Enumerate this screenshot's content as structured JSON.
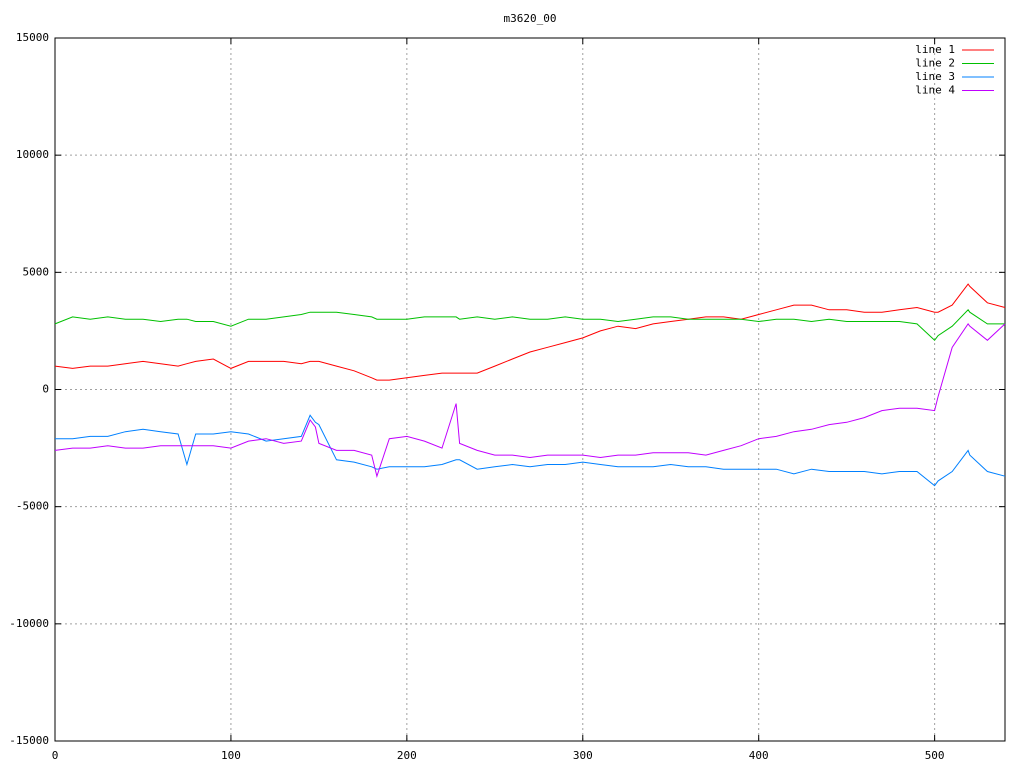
{
  "chart_data": {
    "type": "line",
    "title": "m3620_00",
    "x": [
      0,
      10,
      20,
      30,
      40,
      50,
      60,
      70,
      75,
      80,
      90,
      100,
      110,
      120,
      130,
      140,
      145,
      148,
      150,
      160,
      170,
      180,
      183,
      190,
      200,
      210,
      220,
      228,
      230,
      240,
      250,
      260,
      270,
      280,
      290,
      300,
      310,
      320,
      330,
      340,
      350,
      360,
      370,
      380,
      390,
      400,
      410,
      420,
      430,
      440,
      450,
      460,
      470,
      480,
      490,
      500,
      502,
      510,
      519,
      520,
      530,
      540
    ],
    "series": [
      {
        "name": "line 1",
        "color": "#ff0000",
        "values": [
          1000,
          900,
          1000,
          1000,
          1100,
          1200,
          1100,
          1000,
          1100,
          1200,
          1300,
          900,
          1200,
          1200,
          1200,
          1100,
          1200,
          1200,
          1200,
          1000,
          800,
          500,
          400,
          400,
          500,
          600,
          700,
          700,
          700,
          700,
          1000,
          1300,
          1600,
          1800,
          2000,
          2200,
          2500,
          2700,
          2600,
          2800,
          2900,
          3000,
          3100,
          3100,
          3000,
          3200,
          3400,
          3600,
          3600,
          3400,
          3400,
          3300,
          3300,
          3400,
          3500,
          3300,
          3300,
          3600,
          4500,
          4400,
          3700,
          3500
        ]
      },
      {
        "name": "line 2",
        "color": "#00c000",
        "values": [
          2800,
          3100,
          3000,
          3100,
          3000,
          3000,
          2900,
          3000,
          3000,
          2900,
          2900,
          2700,
          3000,
          3000,
          3100,
          3200,
          3300,
          3300,
          3300,
          3300,
          3200,
          3100,
          3000,
          3000,
          3000,
          3100,
          3100,
          3100,
          3000,
          3100,
          3000,
          3100,
          3000,
          3000,
          3100,
          3000,
          3000,
          2900,
          3000,
          3100,
          3100,
          3000,
          3000,
          3000,
          3000,
          2900,
          3000,
          3000,
          2900,
          3000,
          2900,
          2900,
          2900,
          2900,
          2800,
          2100,
          2300,
          2700,
          3400,
          3300,
          2800,
          2800
        ]
      },
      {
        "name": "line 3",
        "color": "#0080ff",
        "values": [
          -2100,
          -2100,
          -2000,
          -2000,
          -1800,
          -1700,
          -1800,
          -1900,
          -3200,
          -1900,
          -1900,
          -1800,
          -1900,
          -2200,
          -2100,
          -2000,
          -1100,
          -1400,
          -1500,
          -3000,
          -3100,
          -3300,
          -3400,
          -3300,
          -3300,
          -3300,
          -3200,
          -3000,
          -3000,
          -3400,
          -3300,
          -3200,
          -3300,
          -3200,
          -3200,
          -3100,
          -3200,
          -3300,
          -3300,
          -3300,
          -3200,
          -3300,
          -3300,
          -3400,
          -3400,
          -3400,
          -3400,
          -3600,
          -3400,
          -3500,
          -3500,
          -3500,
          -3600,
          -3500,
          -3500,
          -4100,
          -3900,
          -3500,
          -2600,
          -2800,
          -3500,
          -3700
        ]
      },
      {
        "name": "line 4",
        "color": "#c000ff",
        "values": [
          -2600,
          -2500,
          -2500,
          -2400,
          -2500,
          -2500,
          -2400,
          -2400,
          -2400,
          -2400,
          -2400,
          -2500,
          -2200,
          -2100,
          -2300,
          -2200,
          -1300,
          -1600,
          -2300,
          -2600,
          -2600,
          -2800,
          -3700,
          -2100,
          -2000,
          -2200,
          -2500,
          -600,
          -2300,
          -2600,
          -2800,
          -2800,
          -2900,
          -2800,
          -2800,
          -2800,
          -2900,
          -2800,
          -2800,
          -2700,
          -2700,
          -2700,
          -2800,
          -2600,
          -2400,
          -2100,
          -2000,
          -1800,
          -1700,
          -1500,
          -1400,
          -1200,
          -900,
          -800,
          -800,
          -900,
          -300,
          1800,
          2800,
          2700,
          2100,
          2800
        ]
      }
    ],
    "xlim": [
      0,
      540
    ],
    "xticks": [
      0,
      100,
      200,
      300,
      400,
      500
    ],
    "ylim": [
      -15000,
      15000
    ],
    "yticks": [
      -15000,
      -10000,
      -5000,
      0,
      5000,
      10000,
      15000
    ],
    "grid": true,
    "legend": "top-right"
  }
}
